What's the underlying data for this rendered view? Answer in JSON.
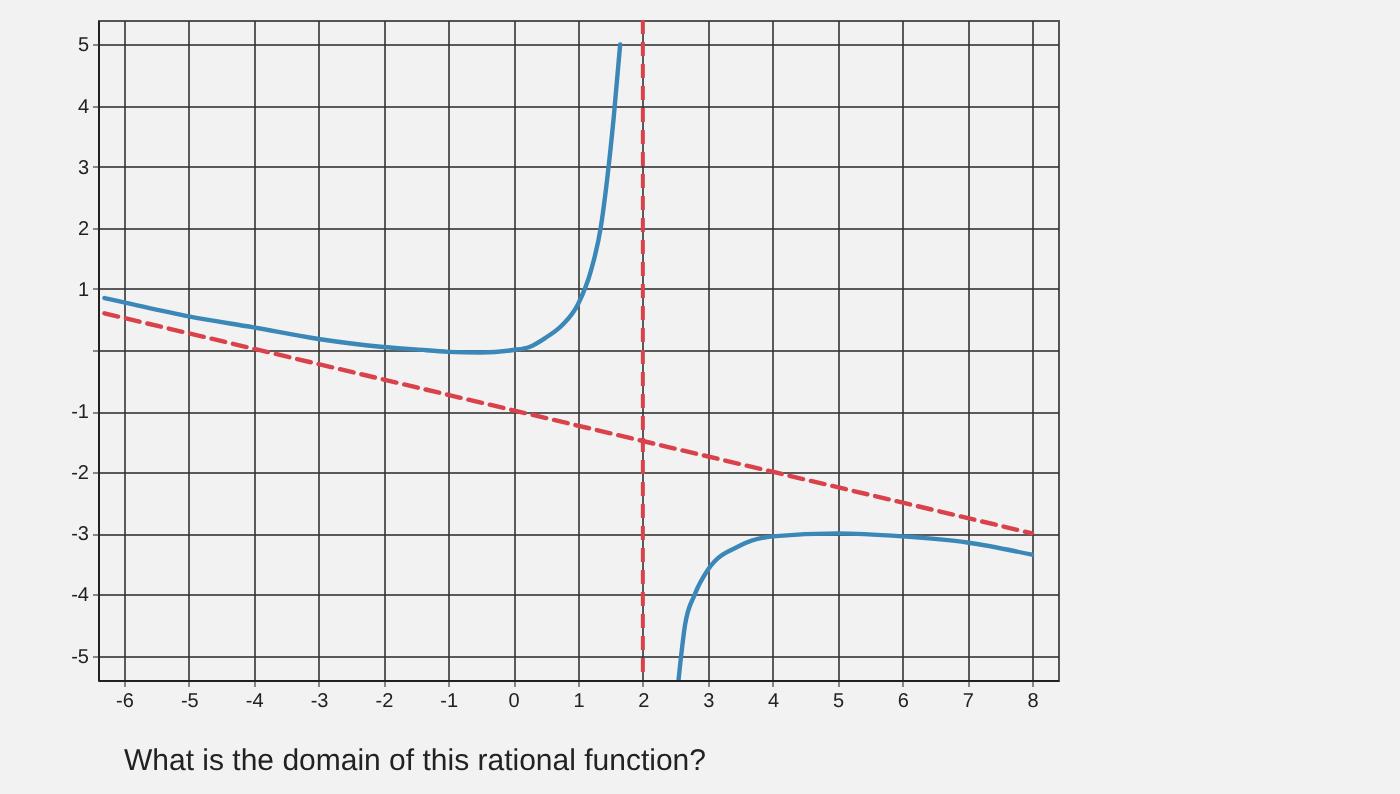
{
  "chart_data": {
    "type": "line",
    "xlim": [
      -6.4,
      8.4
    ],
    "ylim": [
      -5.4,
      5.4
    ],
    "xticks": [
      -6,
      -5,
      -4,
      -3,
      -2,
      -1,
      0,
      1,
      2,
      3,
      4,
      5,
      6,
      7,
      8
    ],
    "yticks": [
      -5,
      -4,
      -3,
      -2,
      -1,
      {
        "value": 0,
        "label": null
      },
      1,
      2,
      3,
      4,
      5
    ],
    "grid": true,
    "series": [
      {
        "color": "#3a87b8",
        "line_style": "solid",
        "x": [
          -6.3,
          -6,
          -5,
          -4,
          -3,
          -2,
          -1.5,
          -1,
          -0.5,
          0,
          0.25,
          0.5,
          0.75,
          1,
          1.2,
          1.35,
          1.45,
          1.55,
          1.65
        ],
        "values": [
          0.85,
          0.78,
          0.55,
          0.37,
          0.18,
          0.05,
          0.01,
          -0.03,
          -0.04,
          0,
          0.05,
          0.2,
          0.4,
          0.75,
          1.3,
          2,
          2.8,
          3.8,
          5
        ]
      },
      {
        "color": "#3a87b8",
        "line_style": "solid",
        "x": [
          2.55,
          2.65,
          2.8,
          3,
          3.5,
          4,
          5,
          6,
          7,
          8
        ],
        "values": [
          -5.4,
          -4.5,
          -4,
          -3.6,
          -3.2,
          -3.05,
          -3,
          -3.05,
          -3.15,
          -3.35
        ]
      },
      {
        "color": "#d9424a",
        "line_style": "dashed",
        "x": [
          -6.3,
          8
        ],
        "values": [
          0.6,
          -3
        ]
      }
    ],
    "ref_lines": [
      {
        "axis": "x",
        "value": 2,
        "color": "#d9424a",
        "line_style": "dashed"
      }
    ],
    "annotations": [
      "What is the domain of this rational function?"
    ]
  }
}
